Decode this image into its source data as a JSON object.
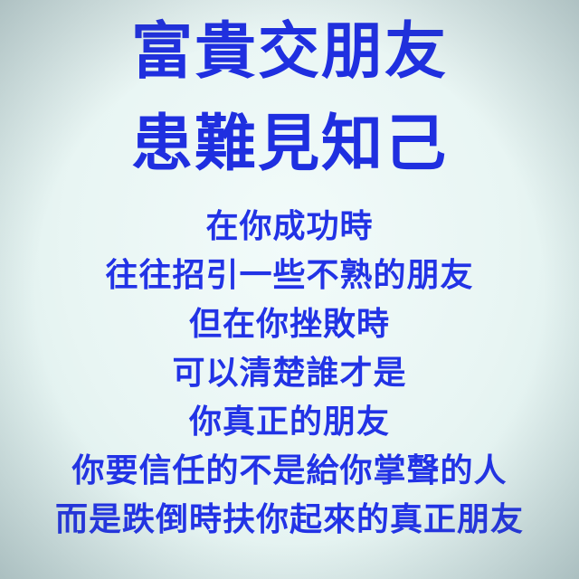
{
  "headline": {
    "line1": "富貴交朋友",
    "line2": "患難見知己"
  },
  "body_lines": [
    "在你成功時",
    "往往招引一些不熟的朋友",
    "但在你挫敗時",
    "可以清楚誰才是",
    "你真正的朋友",
    "你要信任的不是給你掌聲的人",
    "而是跌倒時扶你起來的真正朋友"
  ],
  "colors": {
    "text": "#2233e6",
    "background": "#e9f5f4"
  }
}
